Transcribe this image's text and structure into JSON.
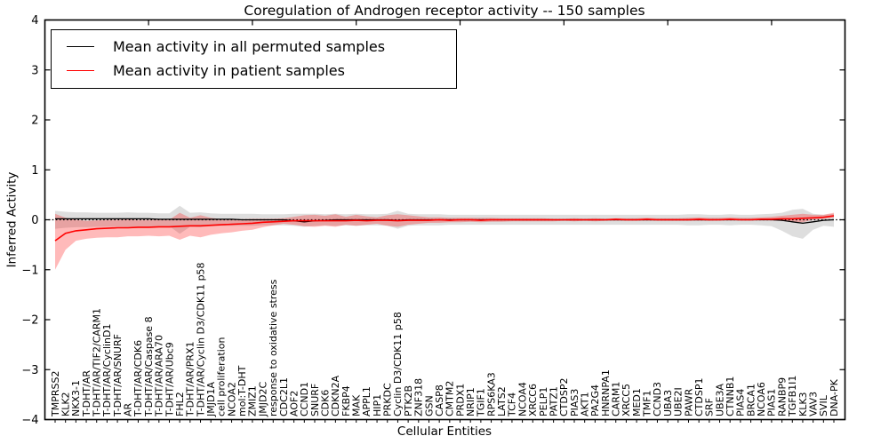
{
  "chart_data": {
    "type": "line",
    "title": "Coregulation of Androgen receptor activity -- 150 samples",
    "xlabel": "Cellular Entities",
    "ylabel": "Inferred Activity",
    "ylim": [
      -4,
      4
    ],
    "yticks": [
      "4",
      "3",
      "2",
      "1",
      "0",
      "−1",
      "−2",
      "−3",
      "−4"
    ],
    "grid": false,
    "legend_position": "upper-left",
    "zero_line_style": "dotted",
    "x_major_tick_every": 10,
    "categories": [
      "TMPRSS2",
      "KLK2",
      "NKX3-1",
      "T-DHT/AR",
      "T-DHT/AR/TIF2/CARM1",
      "T-DHT/AR/CyclinD1",
      "T-DHT/AR/SNURF",
      "AR",
      "T-DHT/AR/CDK6",
      "T-DHT/AR/Caspase 8",
      "T-DHT/AR/ARA70",
      "T-DHT/AR/Ubc9",
      "FHL2",
      "T-DHT/AR/PRX1",
      "T-DHT/AR/Cyclin D3/CDK11 p58",
      "JMJD1A",
      "cell proliferation",
      "NCOA2",
      "mol:T-DHT",
      "ZMIZ1",
      "JMJD2C",
      "response to oxidative stress",
      "CDC2L1",
      "AOF2",
      "CCND1",
      "SNURF",
      "CDK6",
      "CDKN2A",
      "FKBP4",
      "MAK",
      "APPL1",
      "HIP1",
      "PRKDC",
      "Cyclin D3/CDK11 p58",
      "PTK2B",
      "ZNF318",
      "GSN",
      "CASP8",
      "CMTM2",
      "PRDX1",
      "NRIP1",
      "TGIF1",
      "RPS6KA3",
      "LATS2",
      "TCF4",
      "NCOA4",
      "XRCC6",
      "PELP1",
      "PATZ1",
      "CTDSP2",
      "PIAS3",
      "AKT1",
      "PA2G4",
      "HNRNPA1",
      "CARM1",
      "XRCC5",
      "MED1",
      "TMF1",
      "CCND3",
      "UBA3",
      "UBE2I",
      "PAWR",
      "CTDSP1",
      "SRF",
      "UBE3A",
      "CTNNB1",
      "PIAS4",
      "BRCA1",
      "NCOA6",
      "PIAS1",
      "RANBP9",
      "TGFB1I1",
      "KLK3",
      "VAV3",
      "SVIL",
      "DNA-PK"
    ],
    "series": [
      {
        "name": "Mean activity in all permuted samples",
        "line_color": "#000000",
        "band_color": "rgba(0,0,0,0.13)",
        "values": [
          0.02,
          0.02,
          0.02,
          0.02,
          0.02,
          0.02,
          0.02,
          0.02,
          0.02,
          0.02,
          0.01,
          0.01,
          0.01,
          0.01,
          0.01,
          0.01,
          0.01,
          0.01,
          0.0,
          0.0,
          0.0,
          0.0,
          0.0,
          -0.02,
          -0.04,
          -0.02,
          -0.01,
          0.0,
          0.0,
          0.0,
          0.0,
          0.0,
          0.0,
          -0.01,
          0.0,
          0.0,
          0.0,
          0.0,
          0.0,
          0.0,
          0.0,
          0.0,
          0.0,
          0.0,
          0.0,
          0.0,
          0.0,
          0.0,
          0.0,
          0.0,
          0.0,
          0.0,
          0.0,
          0.0,
          0.0,
          0.0,
          0.0,
          0.0,
          0.0,
          0.0,
          0.0,
          0.0,
          0.0,
          0.0,
          0.0,
          0.0,
          0.0,
          0.0,
          0.0,
          0.0,
          -0.01,
          -0.04,
          -0.07,
          -0.04,
          -0.01,
          0.0
        ],
        "band_upper": [
          0.18,
          0.16,
          0.15,
          0.15,
          0.14,
          0.14,
          0.14,
          0.15,
          0.14,
          0.14,
          0.13,
          0.13,
          0.28,
          0.14,
          0.15,
          0.13,
          0.12,
          0.12,
          0.12,
          0.12,
          0.11,
          0.11,
          0.11,
          0.12,
          0.12,
          0.12,
          0.11,
          0.12,
          0.11,
          0.12,
          0.11,
          0.11,
          0.12,
          0.18,
          0.12,
          0.11,
          0.11,
          0.11,
          0.1,
          0.1,
          0.1,
          0.1,
          0.1,
          0.1,
          0.1,
          0.1,
          0.1,
          0.1,
          0.1,
          0.1,
          0.1,
          0.1,
          0.1,
          0.1,
          0.1,
          0.1,
          0.1,
          0.1,
          0.1,
          0.1,
          0.1,
          0.11,
          0.11,
          0.1,
          0.1,
          0.11,
          0.1,
          0.1,
          0.11,
          0.12,
          0.14,
          0.2,
          0.22,
          0.12,
          0.1,
          0.12
        ],
        "band_lower": [
          -0.18,
          -0.16,
          -0.15,
          -0.15,
          -0.14,
          -0.14,
          -0.14,
          -0.15,
          -0.14,
          -0.14,
          -0.13,
          -0.13,
          -0.28,
          -0.14,
          -0.15,
          -0.13,
          -0.12,
          -0.12,
          -0.12,
          -0.12,
          -0.11,
          -0.11,
          -0.11,
          -0.12,
          -0.14,
          -0.12,
          -0.11,
          -0.12,
          -0.11,
          -0.12,
          -0.11,
          -0.11,
          -0.12,
          -0.18,
          -0.12,
          -0.11,
          -0.11,
          -0.11,
          -0.1,
          -0.1,
          -0.1,
          -0.1,
          -0.1,
          -0.1,
          -0.1,
          -0.1,
          -0.1,
          -0.1,
          -0.1,
          -0.1,
          -0.1,
          -0.1,
          -0.1,
          -0.1,
          -0.1,
          -0.1,
          -0.1,
          -0.1,
          -0.1,
          -0.1,
          -0.1,
          -0.11,
          -0.11,
          -0.1,
          -0.1,
          -0.11,
          -0.1,
          -0.1,
          -0.11,
          -0.13,
          -0.22,
          -0.33,
          -0.38,
          -0.2,
          -0.12,
          -0.14
        ]
      },
      {
        "name": "Mean activity in patient samples",
        "line_color": "#ff0000",
        "band_color": "rgba(255,0,0,0.27)",
        "values": [
          -0.42,
          -0.27,
          -0.22,
          -0.2,
          -0.18,
          -0.17,
          -0.16,
          -0.16,
          -0.15,
          -0.15,
          -0.14,
          -0.14,
          -0.13,
          -0.12,
          -0.12,
          -0.11,
          -0.1,
          -0.09,
          -0.08,
          -0.07,
          -0.05,
          -0.04,
          -0.03,
          -0.02,
          -0.02,
          -0.02,
          -0.02,
          -0.02,
          -0.02,
          -0.01,
          -0.02,
          -0.01,
          -0.01,
          -0.02,
          -0.01,
          -0.01,
          -0.01,
          0.0,
          -0.01,
          0.0,
          0.0,
          -0.01,
          0.0,
          0.0,
          0.0,
          0.0,
          0.0,
          0.0,
          0.0,
          0.0,
          0.0,
          0.0,
          0.0,
          0.0,
          0.01,
          0.0,
          0.0,
          0.01,
          0.0,
          0.0,
          0.0,
          0.0,
          0.01,
          0.0,
          0.0,
          0.01,
          0.0,
          0.0,
          0.01,
          0.01,
          0.02,
          0.02,
          0.03,
          0.04,
          0.05,
          0.08
        ],
        "band_upper": [
          0.12,
          0.04,
          0.0,
          -0.02,
          -0.01,
          0.0,
          0.0,
          0.01,
          0.0,
          0.0,
          0.0,
          0.0,
          0.14,
          0.04,
          0.09,
          0.04,
          0.01,
          0.02,
          0.01,
          0.02,
          0.02,
          0.02,
          0.03,
          0.06,
          0.09,
          0.1,
          0.08,
          0.11,
          0.06,
          0.1,
          0.07,
          0.05,
          0.09,
          0.11,
          0.09,
          0.07,
          0.05,
          0.05,
          0.04,
          0.04,
          0.04,
          0.04,
          0.04,
          0.03,
          0.03,
          0.03,
          0.03,
          0.03,
          0.02,
          0.02,
          0.03,
          0.02,
          0.03,
          0.02,
          0.03,
          0.03,
          0.03,
          0.04,
          0.03,
          0.03,
          0.03,
          0.04,
          0.05,
          0.04,
          0.04,
          0.05,
          0.04,
          0.04,
          0.05,
          0.06,
          0.08,
          0.1,
          0.12,
          0.1,
          0.1,
          0.14
        ],
        "band_lower": [
          -1.0,
          -0.6,
          -0.42,
          -0.38,
          -0.36,
          -0.35,
          -0.35,
          -0.33,
          -0.33,
          -0.32,
          -0.33,
          -0.32,
          -0.4,
          -0.32,
          -0.35,
          -0.3,
          -0.27,
          -0.25,
          -0.22,
          -0.2,
          -0.15,
          -0.11,
          -0.08,
          -0.1,
          -0.13,
          -0.14,
          -0.12,
          -0.14,
          -0.1,
          -0.12,
          -0.1,
          -0.08,
          -0.12,
          -0.14,
          -0.1,
          -0.08,
          -0.06,
          -0.06,
          -0.05,
          -0.05,
          -0.04,
          -0.05,
          -0.04,
          -0.04,
          -0.03,
          -0.03,
          -0.03,
          -0.03,
          -0.03,
          -0.02,
          -0.03,
          -0.02,
          -0.03,
          -0.02,
          -0.02,
          -0.02,
          -0.02,
          -0.02,
          -0.02,
          -0.02,
          -0.02,
          -0.02,
          -0.02,
          -0.02,
          -0.01,
          -0.01,
          -0.01,
          -0.01,
          0.0,
          0.0,
          -0.02,
          -0.05,
          -0.05,
          0.0,
          0.02,
          0.04
        ]
      }
    ]
  }
}
